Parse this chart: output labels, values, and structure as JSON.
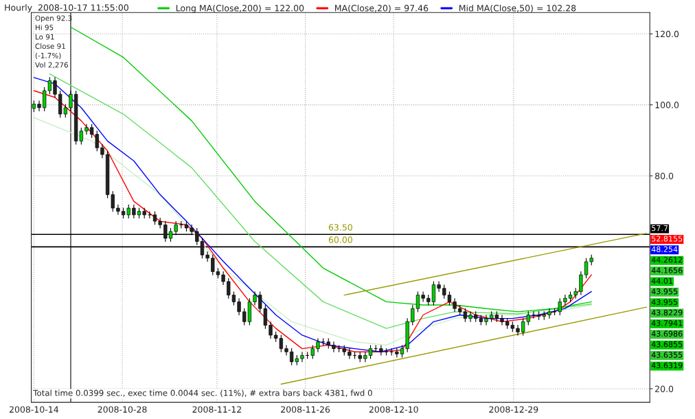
{
  "chart_data": {
    "type": "candlestick",
    "title": "Hourly  2008-10-17 11:55:00",
    "x": [
      "2008-10-14T00:00",
      "2008-10-14T20:00",
      "2008-10-15T16:00",
      "2008-10-16T12:00",
      "2008-10-17T08:00",
      "2008-10-18T04:00",
      "2008-10-19T00:00",
      "2008-10-19T20:00",
      "2008-10-20T16:00",
      "2008-10-21T12:00",
      "2008-10-22T08:00",
      "2008-10-23T04:00",
      "2008-10-24T00:00",
      "2008-10-24T20:00",
      "2008-10-25T16:00",
      "2008-10-26T12:00",
      "2008-10-27T08:00",
      "2008-10-28T04:00",
      "2008-10-29T00:00",
      "2008-10-29T20:00",
      "2008-10-30T16:00",
      "2008-10-31T12:00",
      "2008-11-01T08:00",
      "2008-11-02T04:00",
      "2008-11-03T00:00",
      "2008-11-03T20:00",
      "2008-11-04T16:00",
      "2008-11-05T12:00",
      "2008-11-06T08:00",
      "2008-11-07T04:00",
      "2008-11-08T00:00",
      "2008-11-08T20:00",
      "2008-11-09T16:00",
      "2008-11-10T12:00",
      "2008-11-11T08:00",
      "2008-11-12T04:00",
      "2008-11-13T00:00",
      "2008-11-13T20:00",
      "2008-11-14T16:00",
      "2008-11-15T12:00",
      "2008-11-16T08:00",
      "2008-11-17T04:00",
      "2008-11-18T00:00",
      "2008-11-18T20:00",
      "2008-11-19T16:00",
      "2008-11-20T12:00",
      "2008-11-21T08:00",
      "2008-11-22T04:00",
      "2008-11-23T00:00",
      "2008-11-23T20:00",
      "2008-11-24T16:00",
      "2008-11-25T12:00",
      "2008-11-26T08:00",
      "2008-11-27T04:00",
      "2008-11-28T00:00",
      "2008-11-28T20:00",
      "2008-11-29T16:00",
      "2008-11-30T12:00",
      "2008-12-01T08:00",
      "2008-12-02T04:00",
      "2008-12-03T00:00",
      "2008-12-03T20:00",
      "2008-12-04T16:00",
      "2008-12-05T12:00",
      "2008-12-06T08:00",
      "2008-12-07T04:00",
      "2008-12-08T00:00",
      "2008-12-08T20:00",
      "2008-12-09T16:00",
      "2008-12-10T12:00",
      "2008-12-11T08:00",
      "2008-12-12T04:00",
      "2008-12-13T00:00",
      "2008-12-13T20:00",
      "2008-12-14T16:00",
      "2008-12-15T12:00",
      "2008-12-16T08:00",
      "2008-12-17T04:00",
      "2008-12-18T00:00",
      "2008-12-18T20:00",
      "2008-12-19T16:00",
      "2008-12-20T12:00",
      "2008-12-21T08:00",
      "2008-12-22T04:00",
      "2008-12-23T00:00",
      "2008-12-23T20:00",
      "2008-12-24T16:00",
      "2008-12-25T12:00",
      "2008-12-26T08:00",
      "2008-12-27T04:00",
      "2008-12-28T00:00",
      "2008-12-28T20:00",
      "2008-12-29T16:00",
      "2008-12-30T12:00",
      "2008-12-31T08:00",
      "2009-01-01T04:00",
      "2009-01-02T00:00",
      "2009-01-02T20:00",
      "2009-01-03T16:00",
      "2009-01-04T12:00",
      "2009-01-05T08:00",
      "2009-01-06T04:00",
      "2009-01-07T00:00",
      "2009-01-07T20:00",
      "2009-01-08T16:00",
      "2009-01-09T12:00",
      "2009-01-10T08:00"
    ],
    "ohlc": [
      [
        99.0,
        101.2,
        98.0,
        100.2
      ],
      [
        100.2,
        101.2,
        98.2,
        99.2
      ],
      [
        99.2,
        105.0,
        98.2,
        104.0
      ],
      [
        104.0,
        107.8,
        103.0,
        106.8
      ],
      [
        106.8,
        107.8,
        102.0,
        103.0
      ],
      [
        103.0,
        104.0,
        96.4,
        97.4
      ],
      [
        97.4,
        100.2,
        96.4,
        99.2
      ],
      [
        99.2,
        104.0,
        98.2,
        103.0
      ],
      [
        103.0,
        104.0,
        88.8,
        89.8
      ],
      [
        89.8,
        93.6,
        88.8,
        92.6
      ],
      [
        92.6,
        94.6,
        91.6,
        93.6
      ],
      [
        93.6,
        94.6,
        90.7,
        91.7
      ],
      [
        91.7,
        92.7,
        86.9,
        87.9
      ],
      [
        87.9,
        88.9,
        85.0,
        86.0
      ],
      [
        86.0,
        87.0,
        73.7,
        74.7
      ],
      [
        74.7,
        75.7,
        69.9,
        70.9
      ],
      [
        70.9,
        71.9,
        69.0,
        70.0
      ],
      [
        70.0,
        71.0,
        68.0,
        69.0
      ],
      [
        69.0,
        71.9,
        68.0,
        70.9
      ],
      [
        70.9,
        71.9,
        68.0,
        69.0
      ],
      [
        69.0,
        71.0,
        68.0,
        70.0
      ],
      [
        70.0,
        71.0,
        68.0,
        69.0
      ],
      [
        69.0,
        70.0,
        68.0,
        69.0
      ],
      [
        69.0,
        70.0,
        66.2,
        67.2
      ],
      [
        67.2,
        68.2,
        65.2,
        66.2
      ],
      [
        66.2,
        67.2,
        61.4,
        62.4
      ],
      [
        62.4,
        65.3,
        61.4,
        64.3
      ],
      [
        64.3,
        67.2,
        63.3,
        66.2
      ],
      [
        66.2,
        67.2,
        65.2,
        66.2
      ],
      [
        66.2,
        67.2,
        64.3,
        65.3
      ],
      [
        65.3,
        66.3,
        63.3,
        64.3
      ],
      [
        64.3,
        65.3,
        60.5,
        61.5
      ],
      [
        61.5,
        62.5,
        56.7,
        57.7
      ],
      [
        57.7,
        58.7,
        55.8,
        56.8
      ],
      [
        56.8,
        57.8,
        52.0,
        53.0
      ],
      [
        53.0,
        54.0,
        51.1,
        52.1
      ],
      [
        52.1,
        53.1,
        49.2,
        50.2
      ],
      [
        50.2,
        51.2,
        45.4,
        46.4
      ],
      [
        46.4,
        47.4,
        43.5,
        44.5
      ],
      [
        44.5,
        45.5,
        40.7,
        41.7
      ],
      [
        41.7,
        42.7,
        37.9,
        38.9
      ],
      [
        38.9,
        45.5,
        37.9,
        44.5
      ],
      [
        44.5,
        47.4,
        43.5,
        46.4
      ],
      [
        46.4,
        47.4,
        41.6,
        42.6
      ],
      [
        42.6,
        43.6,
        36.9,
        37.9
      ],
      [
        37.9,
        38.9,
        34.1,
        35.1
      ],
      [
        35.1,
        36.1,
        33.2,
        34.2
      ],
      [
        34.2,
        35.2,
        30.3,
        31.3
      ],
      [
        31.3,
        32.3,
        29.4,
        30.4
      ],
      [
        30.4,
        31.4,
        26.6,
        27.6
      ],
      [
        27.6,
        29.5,
        26.6,
        28.5
      ],
      [
        28.5,
        30.4,
        27.5,
        29.4
      ],
      [
        29.4,
        30.4,
        28.4,
        29.4
      ],
      [
        29.4,
        32.3,
        28.4,
        31.3
      ],
      [
        31.3,
        34.2,
        30.3,
        33.2
      ],
      [
        33.2,
        34.2,
        32.2,
        33.2
      ],
      [
        33.2,
        34.2,
        31.3,
        32.3
      ],
      [
        32.3,
        33.3,
        30.3,
        31.3
      ],
      [
        31.3,
        32.3,
        30.3,
        31.3
      ],
      [
        31.3,
        32.3,
        29.4,
        30.4
      ],
      [
        30.4,
        31.4,
        28.4,
        29.4
      ],
      [
        29.4,
        30.4,
        28.4,
        29.4
      ],
      [
        29.4,
        30.4,
        27.5,
        28.5
      ],
      [
        28.5,
        30.4,
        27.5,
        29.4
      ],
      [
        29.4,
        32.3,
        28.4,
        31.3
      ],
      [
        31.3,
        32.3,
        30.3,
        31.3
      ],
      [
        31.3,
        32.3,
        29.4,
        30.4
      ],
      [
        30.4,
        31.4,
        29.4,
        30.4
      ],
      [
        30.4,
        31.4,
        29.4,
        30.4
      ],
      [
        30.4,
        31.4,
        28.8,
        29.8
      ],
      [
        29.8,
        32.3,
        28.8,
        31.3
      ],
      [
        31.3,
        39.9,
        30.3,
        38.9
      ],
      [
        38.9,
        43.6,
        37.9,
        42.6
      ],
      [
        42.6,
        47.4,
        41.6,
        46.4
      ],
      [
        46.4,
        47.4,
        44.5,
        45.5
      ],
      [
        45.5,
        46.5,
        43.5,
        44.5
      ],
      [
        44.5,
        50.3,
        43.5,
        49.3
      ],
      [
        49.3,
        50.3,
        47.3,
        48.3
      ],
      [
        48.3,
        49.3,
        45.4,
        46.4
      ],
      [
        46.4,
        47.4,
        43.5,
        44.5
      ],
      [
        44.5,
        45.5,
        41.6,
        42.6
      ],
      [
        42.6,
        43.6,
        40.7,
        41.7
      ],
      [
        41.7,
        42.7,
        38.8,
        39.8
      ],
      [
        39.8,
        41.8,
        38.8,
        40.8
      ],
      [
        40.8,
        41.8,
        38.8,
        39.8
      ],
      [
        39.8,
        40.8,
        37.9,
        38.9
      ],
      [
        38.9,
        40.8,
        37.9,
        39.8
      ],
      [
        39.8,
        41.8,
        38.8,
        40.8
      ],
      [
        40.8,
        41.8,
        38.8,
        39.8
      ],
      [
        39.8,
        40.8,
        37.9,
        38.9
      ],
      [
        38.9,
        39.9,
        36.9,
        37.9
      ],
      [
        37.9,
        38.9,
        36.0,
        37.0
      ],
      [
        37.0,
        38.0,
        35.0,
        36.0
      ],
      [
        36.0,
        39.9,
        35.0,
        38.9
      ],
      [
        38.9,
        41.8,
        37.9,
        40.8
      ],
      [
        40.8,
        41.8,
        39.8,
        40.8
      ],
      [
        40.8,
        41.8,
        39.4,
        40.4
      ],
      [
        40.4,
        41.8,
        39.4,
        40.8
      ],
      [
        40.8,
        42.7,
        39.8,
        41.7
      ],
      [
        41.7,
        42.7,
        40.7,
        41.7
      ],
      [
        41.7,
        45.5,
        40.7,
        44.5
      ],
      [
        44.5,
        46.5,
        43.5,
        45.5
      ],
      [
        45.5,
        47.4,
        44.5,
        46.4
      ],
      [
        46.4,
        48.4,
        45.4,
        47.4
      ],
      [
        47.4,
        53.1,
        46.4,
        52.1
      ],
      [
        52.1,
        56.8,
        51.1,
        55.8
      ],
      [
        55.8,
        57.8,
        54.8,
        56.8
      ]
    ],
    "series": [
      {
        "type": "line",
        "color": "#c8f0c8",
        "x": [
          "2008-10-14T00:00",
          "2008-10-23T04:00",
          "2008-11-03T00:00",
          "2008-11-13T00:00",
          "2008-11-23T20:00",
          "2008-12-03T20:00",
          "2008-12-08T20:00",
          "2008-12-14T16:00",
          "2008-12-19T16:00",
          "2008-12-24T16:00",
          "2008-12-29T16:00",
          "2009-01-04T12:00",
          "2009-01-10T08:00"
        ],
        "values": [
          96.4,
          89.8,
          74.7,
          54.0,
          38.9,
          33.2,
          32.3,
          37.0,
          39.8,
          40.8,
          40.8,
          41.7,
          43.6
        ]
      },
      {
        "type": "line",
        "color": "#66dd66",
        "x": [
          "2008-10-16T12:00",
          "2008-10-28T04:00",
          "2008-11-08T00:00",
          "2008-11-18T00:00",
          "2008-11-28T20:00",
          "2008-12-08T20:00",
          "2008-12-14T16:00",
          "2008-12-19T16:00",
          "2008-12-29T16:00",
          "2009-01-10T08:00"
        ],
        "values": [
          108.7,
          97.4,
          82.3,
          61.5,
          44.5,
          37.0,
          39.8,
          41.7,
          41.1,
          43.9
        ]
      },
      {
        "name": "Long MA(Close,200) = 122.00",
        "type": "line",
        "color": "#00cc00",
        "x": [
          "2008-10-19T20:00",
          "2008-10-28T04:00",
          "2008-11-08T00:00",
          "2008-11-18T00:00",
          "2008-11-28T20:00",
          "2008-12-08T20:00",
          "2008-12-14T16:00",
          "2008-12-19T16:00",
          "2008-12-24T16:00",
          "2008-12-29T16:00",
          "2009-01-04T12:00",
          "2009-01-10T08:00"
        ],
        "values": [
          121.9,
          113.4,
          95.5,
          72.8,
          54.0,
          44.5,
          43.6,
          43.6,
          42.6,
          41.7,
          42.6,
          44.5
        ]
      },
      {
        "name": "MA(Close,20) = 97.46",
        "type": "line",
        "color": "#ff0000",
        "x": [
          "2008-10-14T00:00",
          "2008-10-17T08:00",
          "2008-10-21T12:00",
          "2008-10-25T16:00",
          "2008-10-29T20:00",
          "2008-11-03T00:00",
          "2008-11-07T04:00",
          "2008-11-09T16:00",
          "2008-11-13T00:00",
          "2008-11-17T04:00",
          "2008-11-21T08:00",
          "2008-11-25T12:00",
          "2008-11-29T16:00",
          "2008-12-03T20:00",
          "2008-12-08T00:00",
          "2008-12-11T08:00",
          "2008-12-14T16:00",
          "2008-12-18T20:00",
          "2008-12-23T00:00",
          "2008-12-27T04:00",
          "2008-12-31T08:00",
          "2009-01-04T12:00",
          "2009-01-07T00:00",
          "2009-01-10T08:00"
        ],
        "values": [
          104.0,
          102.1,
          95.5,
          87.0,
          72.8,
          67.2,
          66.2,
          62.4,
          54.0,
          44.5,
          37.0,
          31.3,
          32.3,
          30.4,
          30.4,
          30.9,
          40.8,
          44.5,
          40.8,
          38.9,
          39.8,
          41.7,
          44.5,
          52.1
        ]
      },
      {
        "name": "Mid MA(Close,50) = 102.28",
        "type": "line",
        "color": "#0000ff",
        "x": [
          "2008-10-14T00:00",
          "2008-10-17T08:00",
          "2008-10-21T12:00",
          "2008-10-25T16:00",
          "2008-10-29T20:00",
          "2008-11-03T00:00",
          "2008-11-07T04:00",
          "2008-11-09T16:00",
          "2008-11-13T00:00",
          "2008-11-17T04:00",
          "2008-11-21T08:00",
          "2008-11-25T12:00",
          "2008-11-29T16:00",
          "2008-12-03T20:00",
          "2008-12-08T00:00",
          "2008-12-12T04:00",
          "2008-12-16T08:00",
          "2008-12-20T12:00",
          "2008-12-24T16:00",
          "2008-12-28T20:00",
          "2009-01-02T00:00",
          "2009-01-06T04:00",
          "2009-01-10T08:00"
        ],
        "values": [
          107.7,
          105.9,
          99.2,
          89.8,
          84.2,
          74.7,
          67.2,
          62.4,
          55.9,
          48.3,
          40.8,
          35.1,
          32.3,
          31.3,
          30.4,
          32.3,
          38.9,
          40.8,
          39.8,
          39.8,
          40.8,
          42.6,
          47.4
        ]
      },
      {
        "type": "line",
        "color": "#999900",
        "x": [
          "2008-11-22T04:00",
          "2009-01-19T02:00"
        ],
        "values": [
          21.3,
          43.0
        ]
      },
      {
        "type": "line",
        "color": "#999900",
        "x": [
          "2008-12-02T04:00",
          "2009-01-19T02:00"
        ],
        "values": [
          46.4,
          63.8
        ]
      }
    ],
    "ref_lines": [
      {
        "axis": "y",
        "value": 63.5,
        "label": "63.50",
        "color": "#000000"
      },
      {
        "axis": "y",
        "value": 60,
        "label": "60.00",
        "color": "#000000"
      },
      {
        "axis": "x",
        "value": "2008-10-19T20:00",
        "color": "#000000"
      }
    ],
    "xlim": [
      "2008-10-13T14:00",
      "2009-01-19T14:00"
    ],
    "xticks": [
      "2008-10-14",
      "2008-10-28",
      "2008-11-12",
      "2008-11-26",
      "2008-12-10",
      "2008-12-29"
    ],
    "ylim": [
      16.2,
      126
    ],
    "yticks": [
      {
        "value": 20,
        "label": "20.0"
      },
      {
        "value": 80,
        "label": "80.0"
      },
      {
        "value": 100,
        "label": "100.0"
      },
      {
        "value": 120,
        "label": "120.0"
      }
    ],
    "grid": true,
    "legend": "top",
    "annotations": [
      "Open 92.3",
      "Hi 95",
      "Lo 91",
      "Close 91",
      "(-1.7%)",
      "Vol 2,276",
      "Total time 0.0399 sec., exec time 0.0044 sec. (11%), # extra bars back 4381, fwd 0",
      "57.7",
      "52.8155",
      "48.254",
      "44.2612",
      "44.1656",
      "44.01",
      "43.955",
      "43.955",
      "43.8229",
      "43.7941",
      "43.6986",
      "43.6855",
      "43.6355",
      "43.6319"
    ]
  }
}
